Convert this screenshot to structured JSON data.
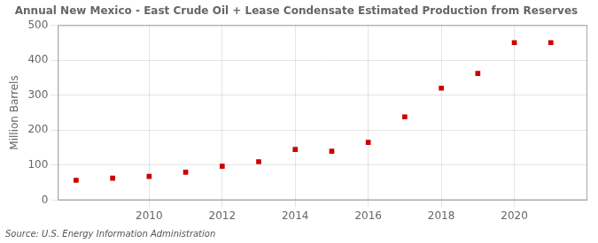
{
  "chart_data": {
    "type": "scatter",
    "title": "Annual New Mexico - East Crude Oil + Lease Condensate Estimated Production from Reserves",
    "ylabel": "Million Barrels",
    "source": "Source: U.S. Energy Information Administration",
    "x": [
      2008,
      2009,
      2010,
      2011,
      2012,
      2013,
      2014,
      2015,
      2016,
      2017,
      2018,
      2019,
      2020,
      2021
    ],
    "values": [
      57,
      63,
      68,
      80,
      97,
      110,
      145,
      140,
      165,
      238,
      320,
      362,
      450,
      450
    ],
    "color": "#cc0000",
    "marker": "square",
    "xlim": [
      2007.5,
      2022.0
    ],
    "xticks": [
      2010,
      2012,
      2014,
      2016,
      2018,
      2020
    ],
    "ylim": [
      0,
      500
    ],
    "yticks": [
      0,
      100,
      200,
      300,
      400,
      500
    ],
    "grid": true
  }
}
